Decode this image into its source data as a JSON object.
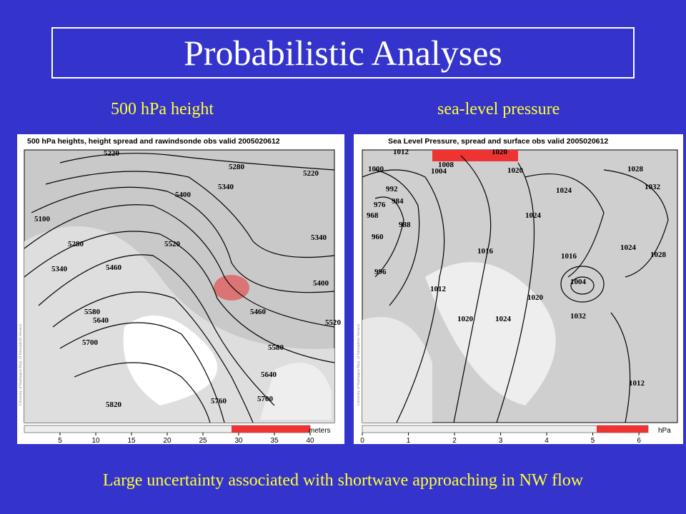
{
  "title": "Probabilistic Analyses",
  "left": {
    "subtitle": "500 hPa height",
    "header": "500 hPa heights, height spread and rawindsonde obs valid 2005020612",
    "contour_labels": [
      "5220",
      "5280",
      "5220",
      "5340",
      "5400",
      "5100",
      "5280",
      "5340",
      "5460",
      "5520",
      "5580",
      "5640",
      "5700",
      "5820",
      "5760",
      "5700",
      "5640",
      "5580",
      "5460",
      "5400",
      "5520",
      "5340"
    ],
    "colorbar_ticks": [
      5,
      10,
      15,
      20,
      25,
      30,
      35,
      40
    ],
    "colorbar_unit": "meters",
    "credit": "University of Washington Dept. of Atmospheric Sciences"
  },
  "right": {
    "subtitle": "sea-level pressure",
    "header": "Sea Level Pressure, spread and surface obs valid 2005020612",
    "contour_labels": [
      "1012",
      "1020",
      "1000",
      "1004",
      "1008",
      "1020",
      "1028",
      "992",
      "976",
      "984",
      "968",
      "960",
      "988",
      "1024",
      "1024",
      "1032",
      "1016",
      "1016",
      "1024",
      "1028",
      "1004",
      "1012",
      "996",
      "1020",
      "1020",
      "1024",
      "1032",
      "1012"
    ],
    "colorbar_ticks": [
      0,
      1,
      2,
      3,
      4,
      5,
      6
    ],
    "colorbar_unit": "hPa",
    "credit": "University of Washington Dept. of Atmospheric Sciences"
  },
  "caption": "Large uncertainty associated with shortwave approaching in NW flow"
}
